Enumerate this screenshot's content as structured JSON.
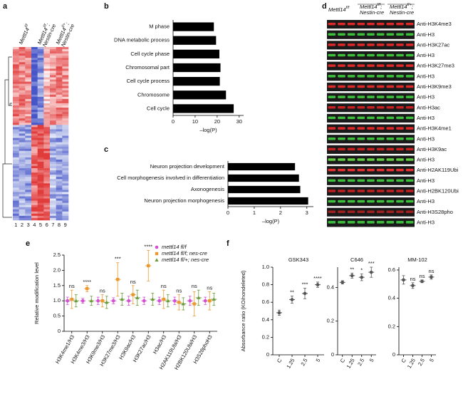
{
  "panel_labels": [
    "a",
    "b",
    "c",
    "d",
    "e",
    "f"
  ],
  "heatmap": {
    "columns": [
      {
        "gene": "Mettl14",
        "genotype": "f/f"
      },
      {
        "gene": "Mettl14",
        "genotype": "f/f",
        "punct": ";",
        "driver": "Nestin-cre"
      },
      {
        "gene": "Mettl14",
        "genotype": "f/+",
        "punct": ";",
        "driver": "Nestin-cre"
      }
    ],
    "lanes": [
      1,
      2,
      3,
      4,
      5,
      6,
      7,
      8,
      9
    ]
  },
  "blot": {
    "columns": [
      {
        "gene": "Mettl14",
        "genotype": "f/f"
      },
      {
        "gene": "Mettl14",
        "genotype": "f/f",
        "punct": ";",
        "driver": "Nestin-cre"
      },
      {
        "gene": "Mettl14",
        "genotype": "f/+",
        "punct": ";",
        "driver": "Nestin-cre"
      }
    ],
    "rows": [
      {
        "label": "Anti-H3K4me3",
        "band_color": "#e02828"
      },
      {
        "label": "Anti-H3",
        "band_color": "#3cc03c"
      },
      {
        "label": "Anti-H3K27ac",
        "band_color": "#e02828"
      },
      {
        "label": "Anti-H3",
        "band_color": "#3cc03c"
      },
      {
        "label": "Anti-H3K27me3",
        "band_color": "#e02828"
      },
      {
        "label": "Anti-H3",
        "band_color": "#3cc03c"
      },
      {
        "label": "Anti-H3K9me3",
        "band_color": "#e02828"
      },
      {
        "label": "Anti-H3",
        "band_color": "#3cc03c"
      },
      {
        "label": "Anti-H3ac",
        "band_color": "#c82020"
      },
      {
        "label": "Anti-H3",
        "band_color": "#3cc03c"
      },
      {
        "label": "Anti-H3K4me1",
        "band_color": "#e02828"
      },
      {
        "label": "Anti-H3",
        "band_color": "#3cc03c"
      },
      {
        "label": "Anti-H3K9ac",
        "band_color": "#c82020"
      },
      {
        "label": "Anti-H3",
        "band_color": "#60d040"
      },
      {
        "label": "Anti-H2AK119Ubi",
        "band_color": "#e83030"
      },
      {
        "label": "Anti-H3",
        "band_color": "#3cc03c"
      },
      {
        "label": "Anti-H2BK120Ubi",
        "band_color": "#c02020"
      },
      {
        "label": "Anti-H3",
        "band_color": "#3cc03c"
      },
      {
        "label": "Anti-H3S28pho",
        "band_color": "#a02020"
      },
      {
        "label": "Anti-H3",
        "band_color": "#3cc03c"
      }
    ]
  },
  "chart_data": [
    {
      "type": "bar",
      "orientation": "horizontal",
      "categories": [
        "M phase",
        "DNA metabolic process",
        "Cell cycle phase",
        "Chromosomal part",
        "Cell cycle process",
        "Chromosome",
        "Cell cycle"
      ],
      "values": [
        18.5,
        19.5,
        21,
        21.5,
        21.2,
        24,
        27.5
      ],
      "color": "#000000",
      "xlim": [
        0,
        32
      ],
      "xticks": [
        0,
        10,
        20,
        30
      ],
      "x_label": "–log(P)"
    },
    {
      "type": "bar",
      "orientation": "horizontal",
      "categories": [
        "Neuron projection development",
        "Cell morphogenesis involved in differentiation",
        "Axonogenesis",
        "Neuron projection morphogenesis"
      ],
      "values": [
        2.55,
        2.7,
        2.75,
        3.05
      ],
      "color": "#000000",
      "xlim": [
        0,
        3.25
      ],
      "xticks": [
        0,
        1,
        2,
        3
      ],
      "x_label": "–log(P)"
    },
    {
      "type": "dot",
      "y_label": "Relative modification level",
      "categories": [
        "H3K4me1/H3",
        "H3K4me3/H3",
        "H3K9me3/H3",
        "H3K27me3/H3",
        "H3K9ac/H3",
        "H3K27ac/H3",
        "H3ac/H3",
        "H2AK119Ubi/H3",
        "H2BK120Ubi/H3",
        "H3S28phoH3"
      ],
      "series": [
        {
          "name": "mettl14 fl/f",
          "color": "#d24fd2",
          "marker": "circle",
          "values": [
            1,
            1,
            1,
            1,
            1,
            1,
            1,
            1,
            1,
            1
          ],
          "errors": [
            0.12,
            0.08,
            0.12,
            0.1,
            0.15,
            0.12,
            0.12,
            0.12,
            0.15,
            0.12
          ]
        },
        {
          "name": "mettl14 fl/f; nes-cre",
          "color": "#e89a30",
          "marker": "square",
          "values": [
            1.05,
            1.4,
            1.0,
            1.7,
            1.2,
            2.15,
            1.05,
            0.95,
            0.9,
            1.0
          ],
          "errors": [
            0.3,
            0.1,
            0.2,
            0.55,
            0.3,
            0.5,
            0.3,
            0.25,
            0.4,
            0.3
          ]
        },
        {
          "name": "mettl14 fl/+; nes-cre",
          "color": "#6a9a3a",
          "marker": "triangle",
          "values": [
            1.0,
            1.0,
            0.95,
            1.05,
            1.1,
            1.05,
            1.0,
            0.9,
            1.1,
            1.05
          ],
          "errors": [
            0.2,
            0.15,
            0.2,
            0.2,
            0.25,
            0.2,
            0.2,
            0.2,
            0.25,
            0.2
          ]
        }
      ],
      "annotations": [
        "ns",
        "****",
        "ns",
        "***",
        "ns",
        "****",
        "ns",
        "ns",
        "ns",
        "ns"
      ],
      "ylim": [
        0,
        2.5
      ],
      "yticks": [
        0,
        0.5,
        {
          "value": 1,
          "label": "1.0"
        },
        1.5,
        {
          "value": 2,
          "label": "2.0"
        },
        2.5
      ]
    },
    {
      "type": "dot",
      "title": "GSK343",
      "y_label": "Absorbance ratio (KO/nondeleted)",
      "categories": [
        "C",
        "1.25",
        "2.5",
        "5"
      ],
      "series": [
        {
          "color": "#555555",
          "marker": "circle",
          "values": [
            0.48,
            0.63,
            0.7,
            0.8
          ],
          "errors": [
            0.03,
            0.04,
            0.06,
            0.03
          ]
        }
      ],
      "annotations": [
        null,
        "**",
        "***",
        "****"
      ],
      "ylim": [
        0,
        1.0
      ],
      "yticks": [
        0,
        0.2,
        0.4,
        0.6,
        0.8,
        {
          "value": 1,
          "label": "1.0"
        }
      ]
    },
    {
      "type": "dot",
      "title": "C646",
      "categories": [
        "C",
        "1.25",
        "2.5",
        "5"
      ],
      "series": [
        {
          "color": "#555555",
          "marker": "circle",
          "values": [
            0.43,
            0.47,
            0.46,
            0.49
          ],
          "errors": [
            0.01,
            0.015,
            0.02,
            0.03
          ]
        }
      ],
      "annotations": [
        null,
        "**",
        "*",
        "***"
      ],
      "ylim": [
        0,
        0.52
      ],
      "yticks": [
        0,
        0.2,
        0.4
      ]
    },
    {
      "type": "dot",
      "title": "MM-102",
      "categories": [
        "C",
        "1.25",
        "2.5",
        "5"
      ],
      "series": [
        {
          "color": "#555555",
          "marker": "circle",
          "values": [
            0.53,
            0.49,
            0.52,
            0.55
          ],
          "errors": [
            0.03,
            0.02,
            0.01,
            0.015
          ]
        }
      ],
      "annotations": [
        null,
        "ns",
        "ns",
        "ns"
      ],
      "ylim": [
        0,
        0.62
      ],
      "yticks": [
        0,
        0.2,
        0.4,
        0.6
      ]
    }
  ]
}
